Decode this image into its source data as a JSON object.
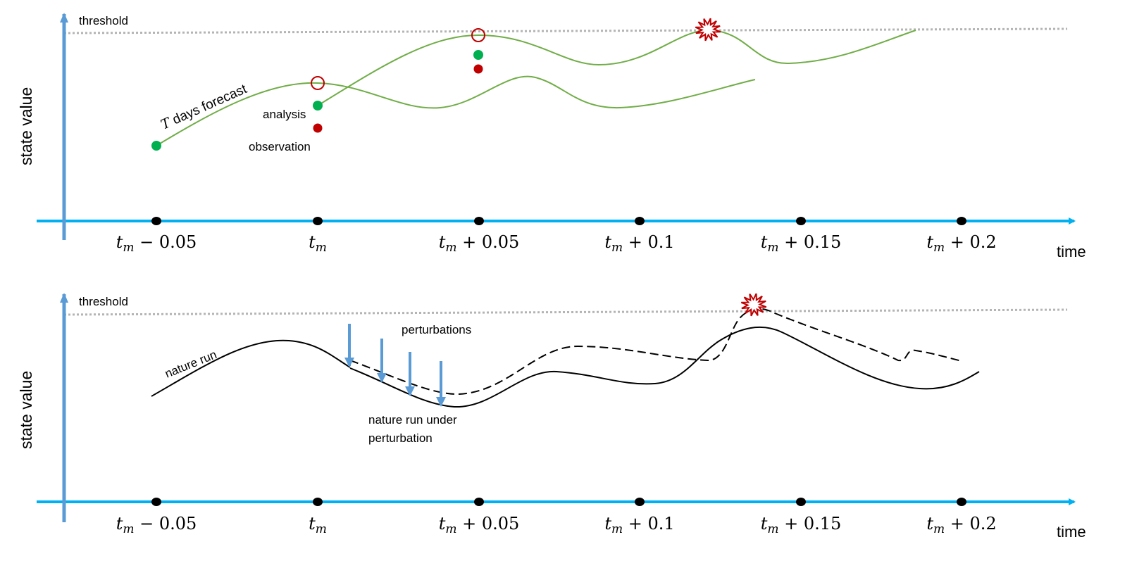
{
  "colors": {
    "axis_x": "#00b0f0",
    "axis_y": "#5b9bd5",
    "threshold": "#b4b4b4",
    "forecast": "#70ad47",
    "analysis": "#00b050",
    "observation": "#c00000",
    "arrow": "#5b9bd5"
  },
  "ticks": [
    {
      "base": "t",
      "sub": "m",
      "suffix": " − 0.05"
    },
    {
      "base": "t",
      "sub": "m",
      "suffix": ""
    },
    {
      "base": "t",
      "sub": "m",
      "suffix": " + 0.05"
    },
    {
      "base": "t",
      "sub": "m",
      "suffix": " + 0.1"
    },
    {
      "base": "t",
      "sub": "m",
      "suffix": " + 0.15"
    },
    {
      "base": "t",
      "sub": "m",
      "suffix": " + 0.2"
    }
  ],
  "top": {
    "y_label": "state value",
    "x_label": "time",
    "threshold_label": "threshold",
    "forecast_label_T": "T",
    "forecast_label": " days forecast",
    "analysis_label": "analysis",
    "observation_label": "observation",
    "exceedance_icon": "starburst-icon"
  },
  "bottom": {
    "y_label": "state value",
    "x_label": "time",
    "threshold_label": "threshold",
    "nature_run_label": "nature run",
    "perturbations_label": "perturbations",
    "perturbed_label_line1": "nature run under",
    "perturbed_label_line2": "perturbation",
    "exceedance_icon": "starburst-icon"
  }
}
